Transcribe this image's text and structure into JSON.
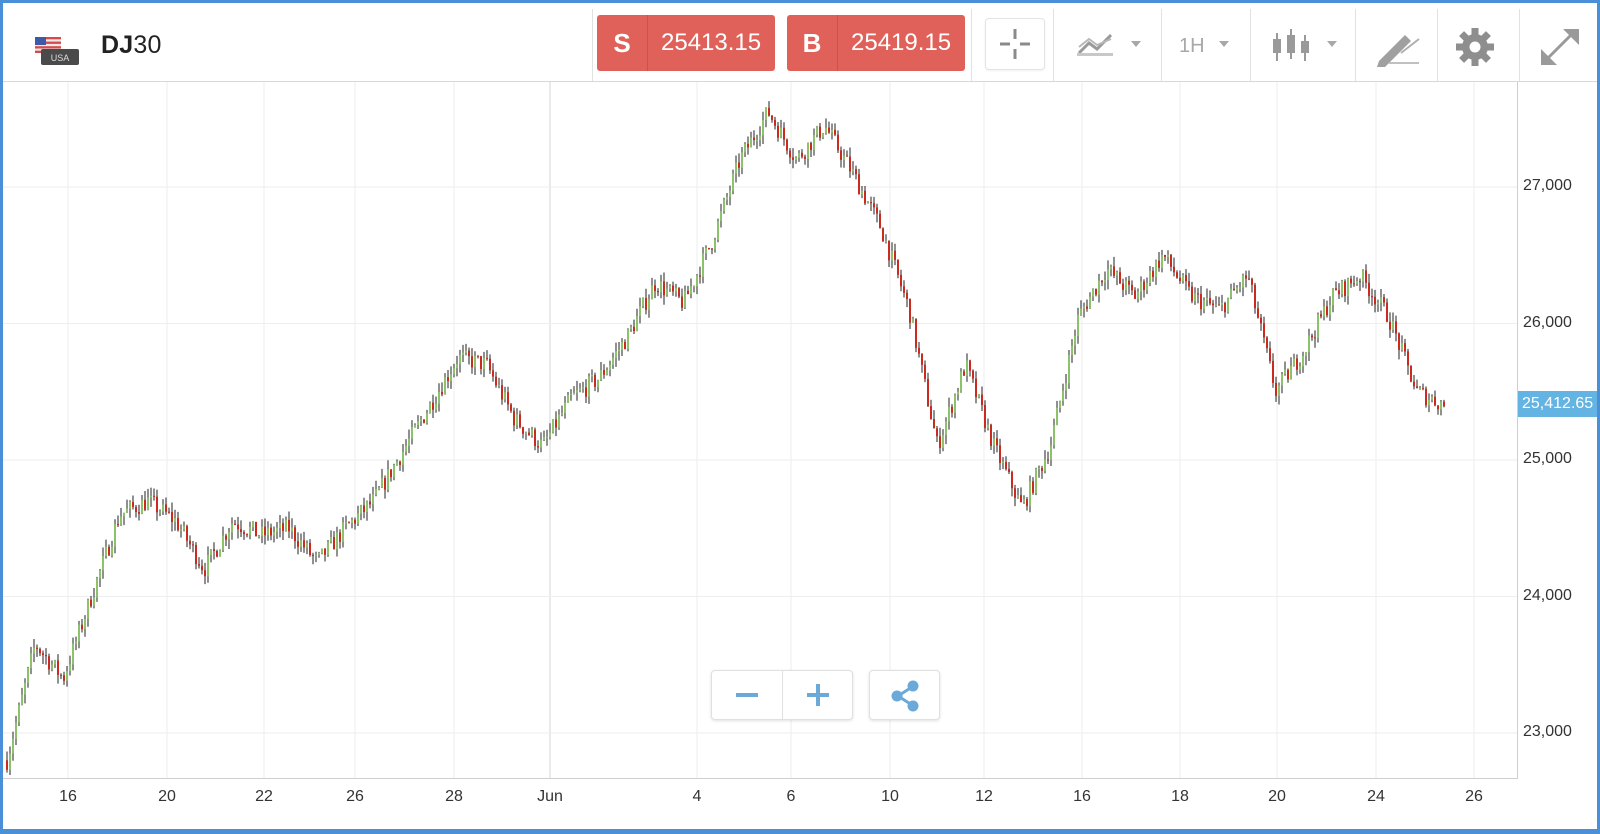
{
  "header": {
    "flag_label": "USA",
    "symbol_bold": "DJ",
    "symbol_rest": "30",
    "sell": {
      "label": "S",
      "price": "25413.15"
    },
    "buy": {
      "label": "B",
      "price": "25419.15"
    },
    "timeframe": "1H"
  },
  "icons": {
    "flag": "usa-flag-icon",
    "crosshair": "crosshair-icon",
    "indicators": "indicators-icon",
    "chart_type": "candlestick-icon",
    "drawing": "drawing-tools-icon",
    "settings": "gear-icon",
    "fullscreen": "expand-icon",
    "zoom_out": "minus-icon",
    "zoom_in": "plus-icon",
    "share": "share-icon"
  },
  "colors": {
    "sell_bg": "#e06159",
    "buy_bg": "#e06159",
    "up_candle": "#8cc36a",
    "down_candle": "#cc2a1e",
    "price_tag": "#63b3e3",
    "frame": "#4a90d9"
  },
  "price_tag": "25,412.65",
  "chart_data": {
    "type": "candlestick",
    "instrument": "DJ30",
    "interval": "1H",
    "y_ticks": [
      "27,000",
      "26,000",
      "25,000",
      "24,000",
      "23,000"
    ],
    "y_tick_values": [
      27000,
      26000,
      25000,
      24000,
      23000
    ],
    "ylim": [
      22780,
      27750
    ],
    "x_ticks": [
      "16",
      "20",
      "22",
      "26",
      "28",
      "Jun",
      "4",
      "6",
      "10",
      "12",
      "16",
      "18",
      "20",
      "24",
      "26"
    ],
    "grid": true,
    "last_price": 25412.65,
    "price_path": [
      {
        "x": "May 14",
        "y": 22800
      },
      {
        "x": "May 15",
        "y": 23650
      },
      {
        "x": "May 15",
        "y": 23400
      },
      {
        "x": "May 16",
        "y": 24000
      },
      {
        "x": "May 17",
        "y": 24600
      },
      {
        "x": "May 18",
        "y": 24700
      },
      {
        "x": "May 19",
        "y": 24550
      },
      {
        "x": "May 20",
        "y": 24200
      },
      {
        "x": "May 21",
        "y": 24550
      },
      {
        "x": "May 22",
        "y": 24450
      },
      {
        "x": "May 23",
        "y": 24500
      },
      {
        "x": "May 24",
        "y": 24250
      },
      {
        "x": "May 25",
        "y": 24500
      },
      {
        "x": "May 26",
        "y": 24700
      },
      {
        "x": "May 27",
        "y": 25050
      },
      {
        "x": "May 28",
        "y": 25400
      },
      {
        "x": "May 29",
        "y": 25750
      },
      {
        "x": "May 30",
        "y": 25700
      },
      {
        "x": "May 31",
        "y": 25300
      },
      {
        "x": "Jun 1",
        "y": 25100
      },
      {
        "x": "Jun 2",
        "y": 25450
      },
      {
        "x": "Jun 3",
        "y": 25600
      },
      {
        "x": "Jun 4",
        "y": 25900
      },
      {
        "x": "Jun 5",
        "y": 26300
      },
      {
        "x": "Jun 6",
        "y": 26150
      },
      {
        "x": "Jun 7",
        "y": 26600
      },
      {
        "x": "Jun 8",
        "y": 27200
      },
      {
        "x": "Jun 9",
        "y": 27550
      },
      {
        "x": "Jun 10",
        "y": 27200
      },
      {
        "x": "Jun 11",
        "y": 27450
      },
      {
        "x": "Jun 12",
        "y": 27100
      },
      {
        "x": "Jun 13",
        "y": 26700
      },
      {
        "x": "Jun 14",
        "y": 26100
      },
      {
        "x": "Jun 15",
        "y": 25100
      },
      {
        "x": "Jun 16",
        "y": 25700
      },
      {
        "x": "Jun 16",
        "y": 25100
      },
      {
        "x": "Jun 17",
        "y": 24650
      },
      {
        "x": "Jun 18",
        "y": 25100
      },
      {
        "x": "Jun 19",
        "y": 26050
      },
      {
        "x": "Jun 20",
        "y": 26400
      },
      {
        "x": "Jun 20",
        "y": 26200
      },
      {
        "x": "Jun 21",
        "y": 26500
      },
      {
        "x": "Jun 22",
        "y": 26200
      },
      {
        "x": "Jun 23",
        "y": 26100
      },
      {
        "x": "Jun 24",
        "y": 26350
      },
      {
        "x": "Jun 25",
        "y": 25500
      },
      {
        "x": "Jun 25",
        "y": 25800
      },
      {
        "x": "Jun 26",
        "y": 26200
      },
      {
        "x": "Jun 27",
        "y": 26350
      },
      {
        "x": "Jun 28",
        "y": 26050
      },
      {
        "x": "Jun 29",
        "y": 25500
      },
      {
        "x": "Jun 29",
        "y": 25400
      }
    ]
  }
}
